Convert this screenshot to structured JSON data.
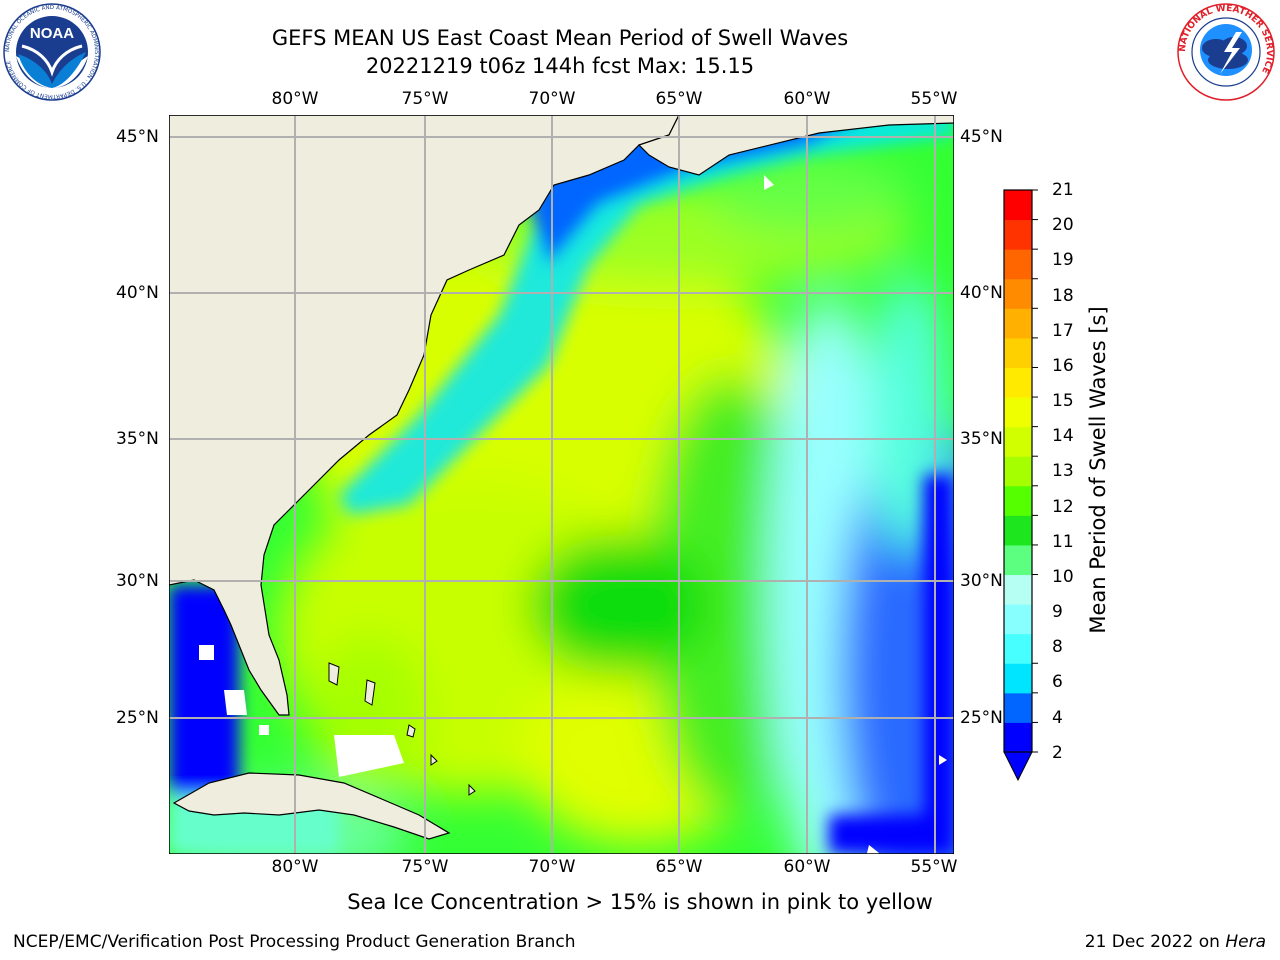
{
  "header": {
    "title_line1": "GEFS MEAN US East Coast Mean Period of Swell Waves",
    "title_line2": "20221219 t06z 144h fcst   Max: 15.15"
  },
  "logos": {
    "noaa": {
      "text": "NOAA",
      "ring_text": "NATIONAL OCEANIC AND ATMOSPHERIC ADMINISTRATION · U.S. DEPARTMENT OF COMMERCE"
    },
    "nws": {
      "ring_text": "NATIONAL WEATHER SERVICE"
    }
  },
  "map": {
    "projection": "equirectangular",
    "lon_range": [
      -85,
      -55
    ],
    "lat_range": [
      20.5,
      45.8
    ],
    "lon_ticks": [
      "80°W",
      "75°W",
      "70°W",
      "65°W",
      "60°W",
      "55°W"
    ],
    "lat_ticks": [
      "45°N",
      "40°N",
      "35°N",
      "30°N",
      "25°N"
    ],
    "grid": true,
    "land_color": "#efedde",
    "coast_color": "#000000"
  },
  "colorbar": {
    "label": "Mean Period of Swell Waves [s]",
    "ticks": [
      "21",
      "20",
      "19",
      "18",
      "17",
      "16",
      "15",
      "14",
      "13",
      "12",
      "11",
      "10",
      "9",
      "8",
      "6",
      "4",
      "2"
    ],
    "colors": [
      "#0000ff",
      "#0066ff",
      "#00e5ff",
      "#47ffff",
      "#88ffff",
      "#b5fff3",
      "#5cff80",
      "#1ee61e",
      "#55ff00",
      "#a6ff00",
      "#d2ff00",
      "#f0ff00",
      "#ffea00",
      "#ffd000",
      "#ffb000",
      "#ff8c00",
      "#ff6600",
      "#ff3300",
      "#ff0000"
    ],
    "extend": "min"
  },
  "footer": {
    "sea_ice_note": "Sea Ice Concentration > 15% is shown in pink to yellow",
    "credit": "NCEP/EMC/Verification Post Processing Product Generation Branch",
    "date": "21 Dec 2022 on",
    "machine": "Hera"
  }
}
